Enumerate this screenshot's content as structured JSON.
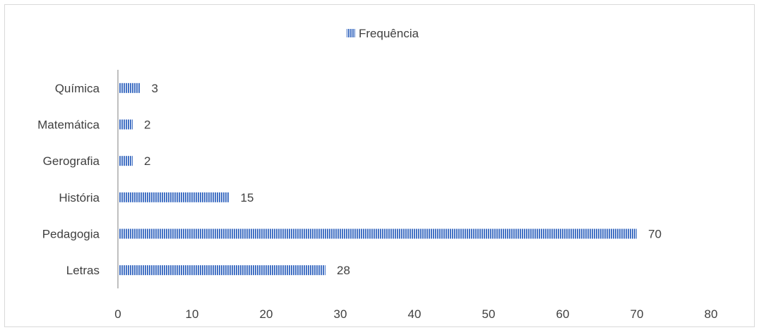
{
  "chart_data": {
    "type": "bar",
    "orientation": "horizontal",
    "categories": [
      "Química",
      "Matemática",
      "Gerografia",
      "História",
      "Pedagogia",
      "Letras"
    ],
    "series": [
      {
        "name": "Frequência",
        "values": [
          3,
          2,
          2,
          15,
          70,
          28
        ]
      }
    ],
    "data_labels": [
      "3",
      "2",
      "2",
      "15",
      "70",
      "28"
    ],
    "xlim": [
      0,
      80
    ],
    "x_ticks": [
      0,
      10,
      20,
      30,
      40,
      50,
      60,
      70,
      80
    ],
    "x_tick_labels": [
      "0",
      "10",
      "20",
      "30",
      "40",
      "50",
      "60",
      "70",
      "80"
    ],
    "grid": false,
    "legend_position": "top-center",
    "bar_pattern": "vertical-stripes",
    "colors": {
      "bar": "#4472c4",
      "bar_stripe": "#ffffff",
      "axis": "#bfbfbf",
      "text": "#404040",
      "border": "#d9d9d9"
    }
  }
}
